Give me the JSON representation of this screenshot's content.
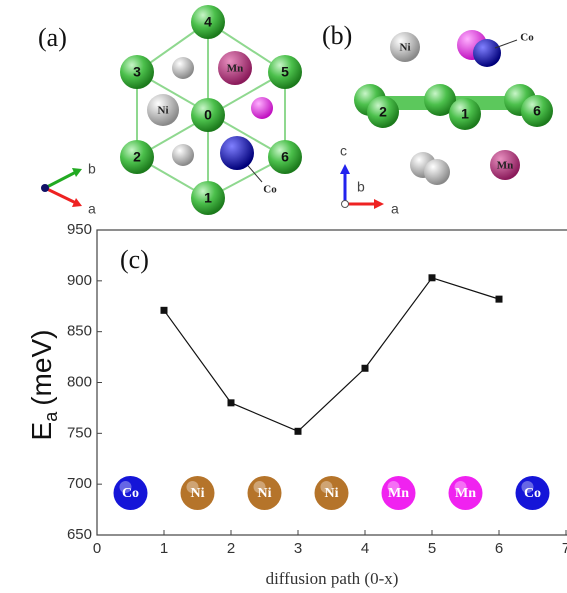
{
  "figure": {
    "panel_a": {
      "label": "(a)",
      "sites": [
        "0",
        "1",
        "2",
        "3",
        "4",
        "5",
        "6"
      ],
      "ni": "Ni",
      "mn": "Mn",
      "co": "Co",
      "axis_b": "b",
      "axis_a": "a"
    },
    "panel_b": {
      "label": "(b)",
      "sites": [
        "1",
        "2",
        "6"
      ],
      "ni": "Ni",
      "mn": "Mn",
      "co": "Co",
      "axis_c": "c",
      "axis_b": "b",
      "axis_a": "a"
    }
  },
  "chart_data": {
    "type": "line",
    "panel_label": "(c)",
    "xlabel": "diffusion path (0-x)",
    "ylabel": "E",
    "ylabel_sub": "a",
    "ylabel_unit": "(meV)",
    "x": [
      1,
      2,
      3,
      4,
      5,
      6
    ],
    "series": [
      {
        "name": "Ea",
        "color": "#111111",
        "values": [
          871,
          780,
          752,
          814,
          903,
          882
        ]
      }
    ],
    "xlim": [
      0,
      7
    ],
    "xticks": [
      0,
      1,
      2,
      3,
      4,
      5,
      6,
      7
    ],
    "ylim": [
      650,
      950
    ],
    "yticks": [
      650,
      700,
      750,
      800,
      850,
      900,
      950
    ],
    "ion_markers": [
      {
        "label": "Co",
        "color": "#1515d8"
      },
      {
        "label": "Ni",
        "color": "#b5742a"
      },
      {
        "label": "Ni",
        "color": "#b5742a"
      },
      {
        "label": "Ni",
        "color": "#b5742a"
      },
      {
        "label": "Mn",
        "color": "#f022f0"
      },
      {
        "label": "Mn",
        "color": "#f022f0"
      },
      {
        "label": "Co",
        "color": "#1515d8"
      }
    ]
  }
}
